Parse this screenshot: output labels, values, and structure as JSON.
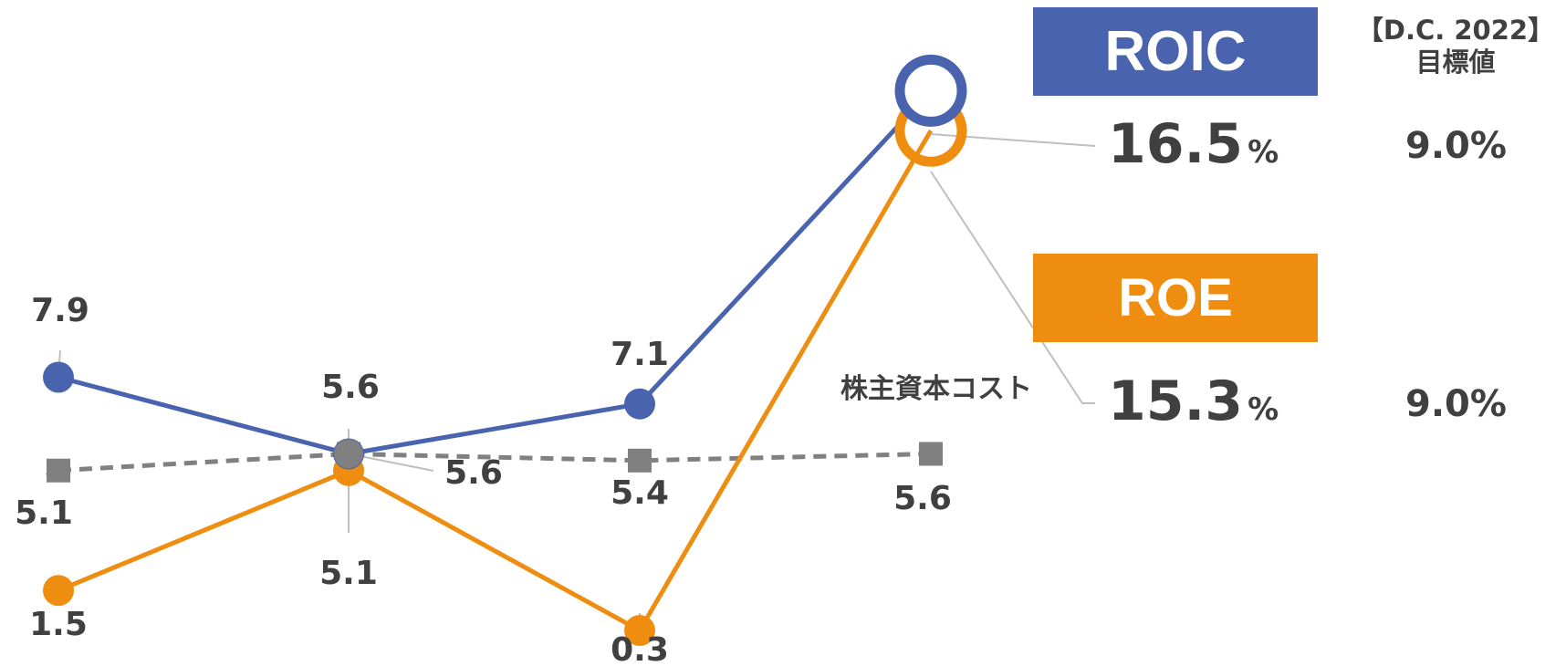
{
  "colors": {
    "roic": "#4a63ae",
    "roe": "#ee8d10",
    "cost": "#808080",
    "label": "#404040",
    "leader": "#bfbfbf"
  },
  "badges": {
    "roic_label": "ROIC",
    "roe_label": "ROE"
  },
  "values": {
    "roic_value": "16.5",
    "roic_unit": "%",
    "roe_value": "15.3",
    "roe_unit": "%"
  },
  "target": {
    "header_line1": "【D.C. 2022】",
    "header_line2": "目標値",
    "roic_target": "9.0%",
    "roe_target": "9.0%"
  },
  "chart_data": {
    "type": "line",
    "categories": [
      "",
      "",
      "",
      ""
    ],
    "series": [
      {
        "name": "ROIC",
        "values": [
          7.9,
          5.6,
          7.1,
          16.5
        ],
        "labels": [
          "7.9",
          "5.6",
          "7.1",
          ""
        ],
        "style": "solid"
      },
      {
        "name": "ROE",
        "values": [
          1.5,
          5.1,
          0.3,
          15.3
        ],
        "labels": [
          "1.5",
          "5.1",
          "0.3",
          ""
        ],
        "style": "solid"
      },
      {
        "name": "株主資本コスト",
        "values": [
          5.1,
          5.6,
          5.4,
          5.6
        ],
        "labels": [
          "5.1",
          "5.6",
          "5.4",
          "5.6"
        ],
        "style": "dashed"
      }
    ],
    "series_annotation": "株主資本コスト",
    "grid": false
  }
}
